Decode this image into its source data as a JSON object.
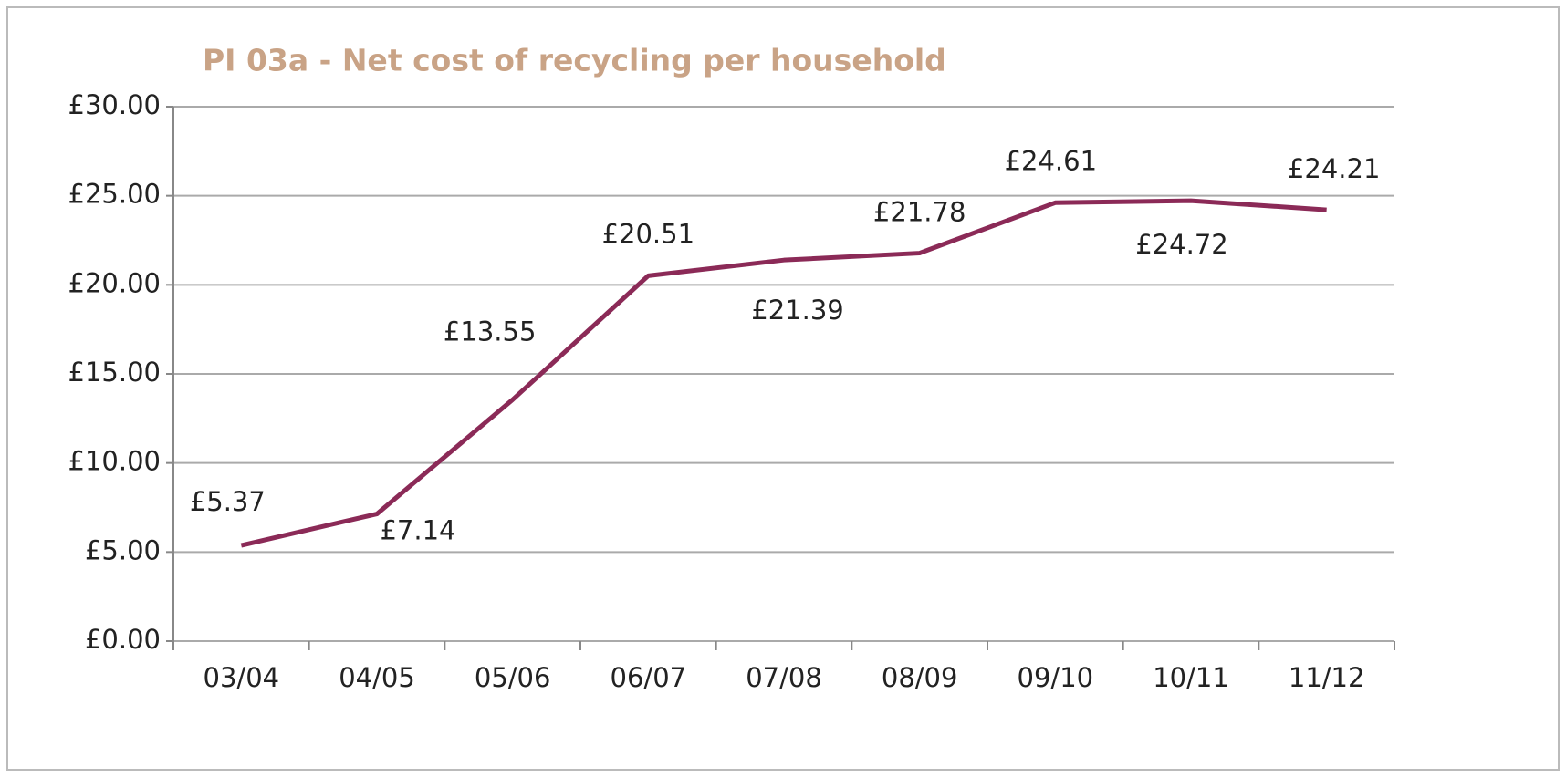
{
  "chart_data": {
    "type": "line",
    "title": "PI 03a - Net cost of recycling per household",
    "categories": [
      "03/04",
      "04/05",
      "05/06",
      "06/07",
      "07/08",
      "08/09",
      "09/10",
      "10/11",
      "11/12"
    ],
    "series": [
      {
        "name": "Net cost of recycling per household",
        "color": "#8b2a57",
        "values": [
          5.37,
          7.14,
          13.55,
          20.51,
          21.39,
          21.78,
          24.61,
          24.72,
          24.21
        ],
        "value_labels": [
          "£5.37",
          "£7.14",
          "£13.55",
          "£20.51",
          "£21.39",
          "£21.78",
          "£24.61",
          "£24.72",
          "£24.21"
        ]
      }
    ],
    "ylim": [
      0,
      30
    ],
    "yticks": [
      {
        "value": 0,
        "label": "£0.00"
      },
      {
        "value": 5,
        "label": "£5.00"
      },
      {
        "value": 10,
        "label": "£10.00"
      },
      {
        "value": 15,
        "label": "£15.00"
      },
      {
        "value": 20,
        "label": "£20.00"
      },
      {
        "value": 25,
        "label": "£25.00"
      },
      {
        "value": 30,
        "label": "£30.00"
      }
    ],
    "grid": true
  }
}
